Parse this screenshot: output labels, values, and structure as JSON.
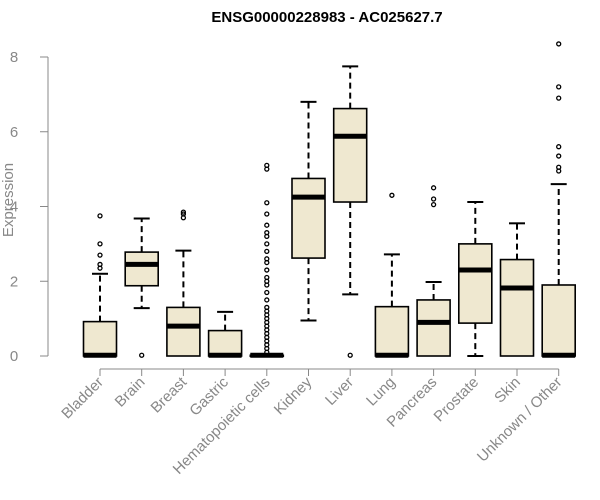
{
  "chart_data": {
    "type": "boxplot",
    "title": "ENSG00000228983 - AC025627.7",
    "ylabel": "Expression",
    "xlabel": "",
    "ylim": [
      0,
      8
    ],
    "yticks": [
      0,
      2,
      4,
      6,
      8
    ],
    "grid": false,
    "legend": "none",
    "box_fill": "#efe8d0",
    "box_stroke": "#000000",
    "categories": [
      "Bladder",
      "Brain",
      "Breast",
      "Gastric",
      "Hematopoietic cells",
      "Kidney",
      "Liver",
      "Lung",
      "Pancreas",
      "Prostate",
      "Skin",
      "Unknown / Other"
    ],
    "boxes": [
      {
        "name": "Bladder",
        "whisker_low": 0,
        "q1": 0,
        "median": 0.02,
        "q3": 0.92,
        "whisker_high": 2.2,
        "outliers": [
          2.35,
          2.45,
          2.7,
          3.0,
          3.75
        ]
      },
      {
        "name": "Brain",
        "whisker_low": 1.28,
        "q1": 1.88,
        "median": 2.45,
        "q3": 2.78,
        "whisker_high": 3.68,
        "outliers": [
          0.02
        ]
      },
      {
        "name": "Breast",
        "whisker_low": 0,
        "q1": 0,
        "median": 0.8,
        "q3": 1.3,
        "whisker_high": 2.82,
        "outliers": [
          3.7,
          3.8,
          3.85
        ]
      },
      {
        "name": "Gastric",
        "whisker_low": 0,
        "q1": 0,
        "median": 0.02,
        "q3": 0.68,
        "whisker_high": 1.18,
        "outliers": []
      },
      {
        "name": "Hematopoietic cells",
        "whisker_low": 0,
        "q1": 0,
        "median": 0.02,
        "q3": 0.02,
        "whisker_high": 0.05,
        "outliers": [
          0.1,
          0.2,
          0.3,
          0.4,
          0.5,
          0.6,
          0.7,
          0.8,
          0.9,
          1.0,
          1.1,
          1.2,
          1.3,
          1.5,
          1.7,
          1.9,
          2.0,
          2.1,
          2.3,
          2.5,
          2.6,
          2.8,
          3.0,
          3.2,
          3.3,
          3.5,
          3.8,
          4.1,
          5.0,
          5.1
        ]
      },
      {
        "name": "Kidney",
        "whisker_low": 0.95,
        "q1": 2.62,
        "median": 4.25,
        "q3": 4.75,
        "whisker_high": 6.8,
        "outliers": []
      },
      {
        "name": "Liver",
        "whisker_low": 1.65,
        "q1": 4.12,
        "median": 5.88,
        "q3": 6.62,
        "whisker_high": 7.75,
        "outliers": [
          0.02
        ]
      },
      {
        "name": "Lung",
        "whisker_low": 0,
        "q1": 0,
        "median": 0.02,
        "q3": 1.32,
        "whisker_high": 2.72,
        "outliers": [
          4.3
        ]
      },
      {
        "name": "Pancreas",
        "whisker_low": 0,
        "q1": 0,
        "median": 0.9,
        "q3": 1.5,
        "whisker_high": 1.98,
        "outliers": [
          4.05,
          4.2,
          4.5
        ]
      },
      {
        "name": "Prostate",
        "whisker_low": 0,
        "q1": 0.88,
        "median": 2.3,
        "q3": 3.0,
        "whisker_high": 4.12,
        "outliers": []
      },
      {
        "name": "Skin",
        "whisker_low": 0,
        "q1": 0,
        "median": 1.82,
        "q3": 2.58,
        "whisker_high": 3.55,
        "outliers": []
      },
      {
        "name": "Unknown / Other",
        "whisker_low": 0,
        "q1": 0,
        "median": 0.02,
        "q3": 1.9,
        "whisker_high": 4.6,
        "outliers": [
          4.95,
          5.05,
          5.35,
          5.6,
          6.9,
          7.2,
          8.35
        ]
      }
    ]
  }
}
